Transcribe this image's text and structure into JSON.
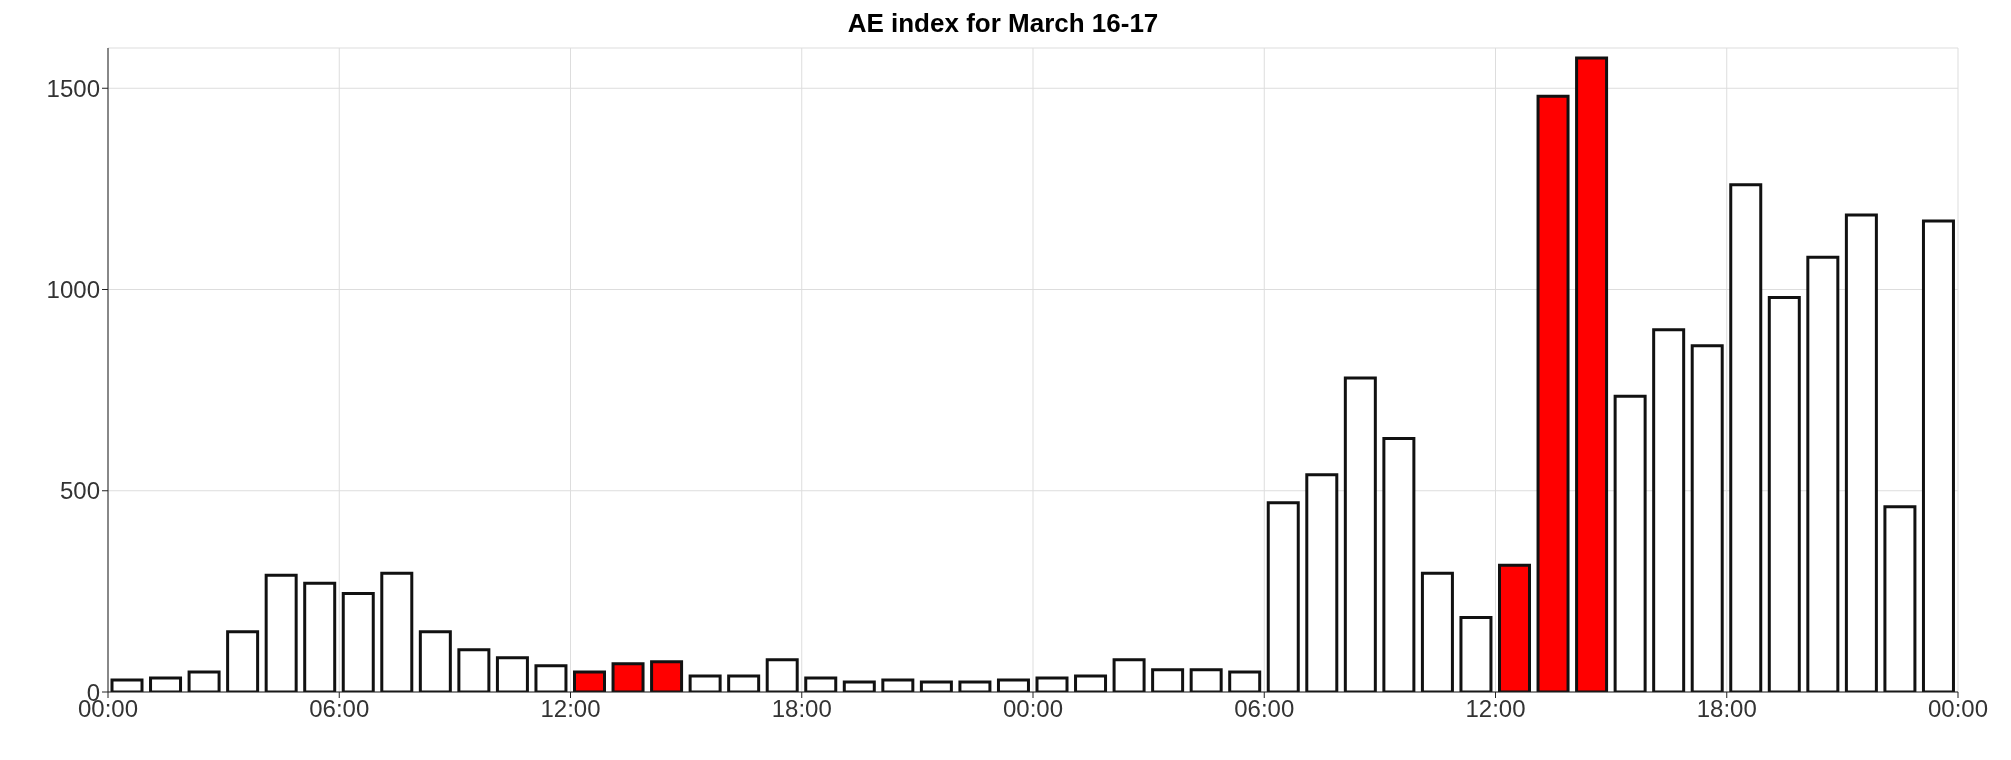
{
  "chart_data": {
    "type": "bar",
    "title": "AE index for March 16-17",
    "x": [
      "--03-16T00:30",
      "--03-16T01:30",
      "--03-16T02:30",
      "--03-16T03:30",
      "--03-16T04:30",
      "--03-16T05:30",
      "--03-16T06:30",
      "--03-16T07:30",
      "--03-16T08:30",
      "--03-16T09:30",
      "--03-16T10:30",
      "--03-16T11:30",
      "--03-16T12:30",
      "--03-16T13:30",
      "--03-16T14:30",
      "--03-16T15:30",
      "--03-16T16:30",
      "--03-16T17:30",
      "--03-16T18:30",
      "--03-16T19:30",
      "--03-16T20:30",
      "--03-16T21:30",
      "--03-16T22:30",
      "--03-16T23:30",
      "--03-17T00:30",
      "--03-17T01:30",
      "--03-17T02:30",
      "--03-17T03:30",
      "--03-17T04:30",
      "--03-17T05:30",
      "--03-17T06:30",
      "--03-17T07:30",
      "--03-17T08:30",
      "--03-17T09:30",
      "--03-17T10:30",
      "--03-17T11:30",
      "--03-17T12:30",
      "--03-17T13:30",
      "--03-17T14:30",
      "--03-17T15:30",
      "--03-17T16:30",
      "--03-17T17:30",
      "--03-17T18:30",
      "--03-17T19:30",
      "--03-17T20:30",
      "--03-17T21:30",
      "--03-17T22:30",
      "--03-17T23:30"
    ],
    "values": [
      30,
      35,
      50,
      150,
      290,
      270,
      245,
      295,
      150,
      105,
      85,
      65,
      50,
      70,
      75,
      40,
      40,
      80,
      35,
      25,
      30,
      25,
      25,
      30,
      35,
      40,
      80,
      55,
      55,
      50,
      470,
      540,
      780,
      630,
      295,
      185,
      315,
      1480,
      1575,
      735,
      900,
      860,
      1260,
      980,
      1080,
      1185,
      460,
      1170
    ],
    "colors": [
      "#ffffff",
      "#ffffff",
      "#ffffff",
      "#ffffff",
      "#ffffff",
      "#ffffff",
      "#ffffff",
      "#ffffff",
      "#ffffff",
      "#ffffff",
      "#ffffff",
      "#ffffff",
      "#ff0000",
      "#ff0000",
      "#ff0000",
      "#ffffff",
      "#ffffff",
      "#ffffff",
      "#ffffff",
      "#ffffff",
      "#ffffff",
      "#ffffff",
      "#ffffff",
      "#ffffff",
      "#ffffff",
      "#ffffff",
      "#ffffff",
      "#ffffff",
      "#ffffff",
      "#ffffff",
      "#ffffff",
      "#ffffff",
      "#ffffff",
      "#ffffff",
      "#ffffff",
      "#ffffff",
      "#ff0000",
      "#ff0000",
      "#ff0000",
      "#ffffff",
      "#ffffff",
      "#ffffff",
      "#ffffff",
      "#ffffff",
      "#ffffff",
      "#ffffff",
      "#ffffff",
      "#ffffff"
    ],
    "xlim": [
      "--03-16T00:00",
      "--03-18T00:00"
    ],
    "xticks": [
      {
        "value": "--03-16T00:00",
        "label": "00:00"
      },
      {
        "value": "--03-16T06:00",
        "label": "06:00"
      },
      {
        "value": "--03-16T12:00",
        "label": "12:00"
      },
      {
        "value": "--03-16T18:00",
        "label": "18:00"
      },
      {
        "value": "--03-17T00:00",
        "label": "00:00"
      },
      {
        "value": "--03-17T06:00",
        "label": "06:00"
      },
      {
        "value": "--03-17T12:00",
        "label": "12:00"
      },
      {
        "value": "--03-17T18:00",
        "label": "18:00"
      },
      {
        "value": "--03-18T00:00",
        "label": "00:00"
      }
    ],
    "ylim": [
      0,
      1600
    ],
    "yticks": [
      0,
      500,
      1000,
      1500
    ],
    "grid": true
  }
}
